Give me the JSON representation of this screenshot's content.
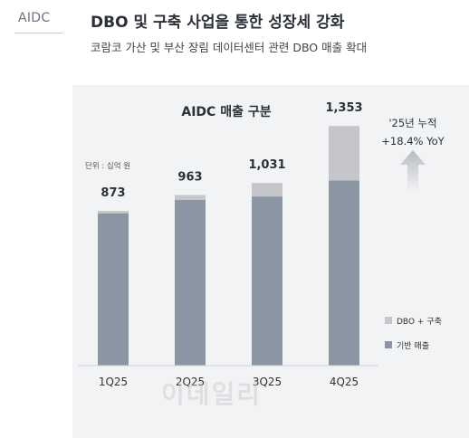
{
  "section_tag": "AIDC",
  "title": "DBO 및 구축 사업을 통한 성장세 강화",
  "subtitle": "코람코 가산 및 부산 장림 데이터센터 관련 DBO 매출 확대",
  "watermark": "이데일리",
  "colors": {
    "base": "#8a96a4",
    "dbo": "#c4c6c9",
    "panel": "#f2f3f5"
  },
  "chart_data": {
    "type": "bar",
    "stacked": true,
    "title": "AIDC 매출 구분",
    "unit_note": "단위 : 십억 원",
    "categories": [
      "1Q25",
      "2Q25",
      "3Q25",
      "4Q25"
    ],
    "totals": [
      "873",
      "963",
      "1,031",
      "1,353"
    ],
    "series": [
      {
        "name": "기반 매출",
        "values": [
          860,
          935,
          955,
          1045
        ]
      },
      {
        "name": "DBO + 구축",
        "values": [
          13,
          28,
          76,
          308
        ]
      }
    ],
    "ylim": [
      0,
      1400
    ],
    "grid": false,
    "legend": "bottom-right",
    "annotation": {
      "line1": "'25년 누적",
      "line2": "+18.4% YoY",
      "icon": "up-arrow-icon"
    }
  }
}
